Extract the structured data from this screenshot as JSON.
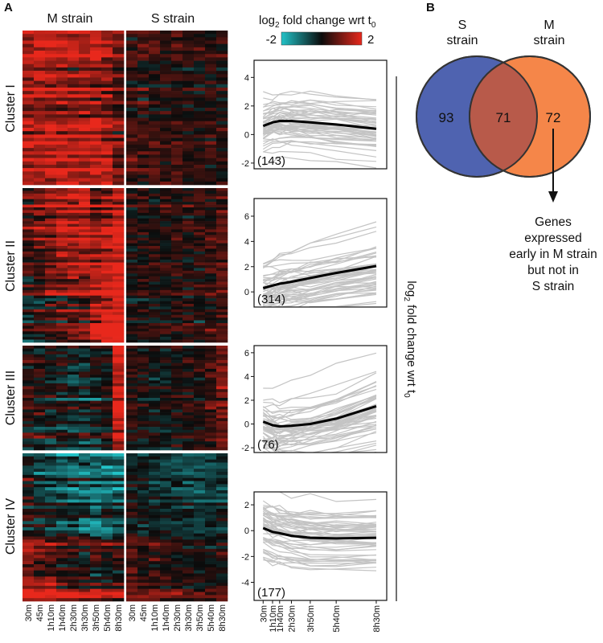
{
  "panel_a": {
    "label": "A",
    "heatmap": {
      "m_strain_title": "M strain",
      "s_strain_title": "S strain",
      "clusters": [
        {
          "label": "Cluster I"
        },
        {
          "label": "Cluster II"
        },
        {
          "label": "Cluster III"
        },
        {
          "label": "Cluster IV"
        }
      ],
      "timepoints": [
        "30m",
        "45m",
        "1h10m",
        "1h40m",
        "2h30m",
        "3h30m",
        "3h50m",
        "5h40m",
        "8h30m"
      ],
      "colors": {
        "low": "#22c3c8",
        "mid": "#0b0b0b",
        "high": "#e8281c"
      }
    },
    "colorbar": {
      "title_prefix": "log",
      "title_sub": "2",
      "title_suffix": " fold change wrt t",
      "title_sub2": "0",
      "min_label": "-2",
      "max_label": "2"
    },
    "y_axis_label": {
      "prefix": "log",
      "sub": "2",
      "mid": " fold change wrt t",
      "sub2": "0"
    },
    "line_charts_x_ticks": [
      "30m",
      "1h10m",
      "1h40m",
      "2h30m",
      "3h50m",
      "5h40m",
      "8h30m"
    ],
    "line_charts_x_positions_hours": [
      0.5,
      1.1667,
      1.6667,
      2.5,
      3.8333,
      5.6667,
      8.5
    ],
    "gene_line_color": "#c4c4c4",
    "mean_line_color": "#000000"
  },
  "chart_data": [
    {
      "type": "line",
      "title": "Cluster I",
      "count_label": "(143)",
      "x": [
        0.5,
        1.1667,
        1.6667,
        2.5,
        3.8333,
        5.6667,
        8.5
      ],
      "yticks": [
        -2,
        0,
        2,
        4
      ],
      "ylim": [
        -2.4,
        5.2
      ],
      "series": [
        {
          "values": [
            0.6,
            0.85,
            0.95,
            0.95,
            0.85,
            0.7,
            0.4
          ]
        }
      ]
    },
    {
      "type": "line",
      "title": "Cluster II",
      "count_label": "(314)",
      "x": [
        0.5,
        1.1667,
        1.6667,
        2.5,
        3.8333,
        5.6667,
        8.5
      ],
      "yticks": [
        0,
        2,
        4,
        6
      ],
      "ylim": [
        -1.2,
        7.4
      ],
      "series": [
        {
          "values": [
            0.3,
            0.5,
            0.65,
            0.8,
            1.1,
            1.5,
            2.05
          ]
        }
      ]
    },
    {
      "type": "line",
      "title": "Cluster III",
      "count_label": "(76)",
      "x": [
        0.5,
        1.1667,
        1.6667,
        2.5,
        3.8333,
        5.6667,
        8.5
      ],
      "yticks": [
        -2,
        0,
        2,
        4,
        6
      ],
      "ylim": [
        -2.4,
        6.6
      ],
      "series": [
        {
          "values": [
            0.2,
            -0.1,
            -0.2,
            -0.15,
            0.0,
            0.45,
            1.5
          ]
        }
      ]
    },
    {
      "type": "line",
      "title": "Cluster IV",
      "count_label": "(177)",
      "x": [
        0.5,
        1.1667,
        1.6667,
        2.5,
        3.8333,
        5.6667,
        8.5
      ],
      "yticks": [
        -4,
        -2,
        0,
        2
      ],
      "ylim": [
        -5.4,
        3.0
      ],
      "series": [
        {
          "values": [
            0.2,
            -0.1,
            -0.2,
            -0.4,
            -0.55,
            -0.6,
            -0.55
          ]
        }
      ]
    }
  ],
  "panel_b": {
    "label": "B",
    "venn": {
      "left_set": {
        "name_line1": "S",
        "name_line2": "strain",
        "color": "#4f63b0"
      },
      "right_set": {
        "name_line1": "M",
        "name_line2": "strain",
        "color": "#f58649"
      },
      "overlap_color": "#b85a4a",
      "left_only": "93",
      "overlap": "71",
      "right_only": "72"
    },
    "annotation_lines": [
      "Genes",
      "expressed",
      "early in M strain",
      "but not in",
      "S strain"
    ]
  }
}
